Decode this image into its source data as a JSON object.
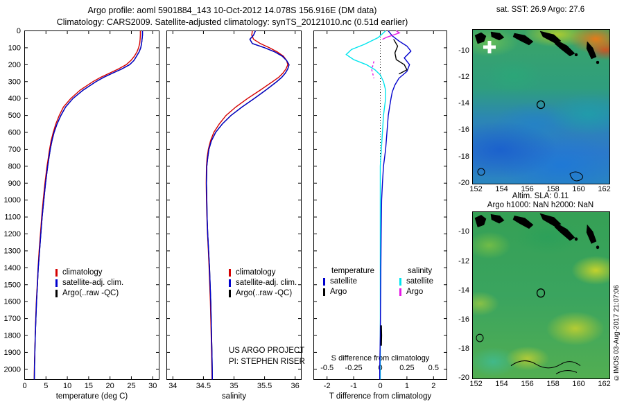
{
  "header": {
    "title_line1": "Argo profile: aoml 5901884_143 10-Oct-2012 14.078S 156.916E (DM data)",
    "title_line2": "Climatology: CARS2009. Satellite-adjusted climatology: synTS_20121010.nc (0.51d earlier)"
  },
  "colors": {
    "climatology": "#d40000",
    "satellite_adjusted": "#0000cd",
    "argo": "#000000",
    "salinity_satellite": "#00e5ee",
    "salinity_argo": "#e517e5"
  },
  "panels": {
    "temperature": {
      "xlabel": "temperature (deg C)",
      "legend_items": [
        {
          "label": "climatology",
          "color": "#d40000"
        },
        {
          "label": "satellite-adj. clim.",
          "color": "#0000cd"
        },
        {
          "label": "Argo(..raw -QC)",
          "color": "#000000"
        }
      ]
    },
    "salinity": {
      "xlabel": "salinity",
      "legend_items": [
        {
          "label": "climatology",
          "color": "#d40000"
        },
        {
          "label": "satellite-adj. clim.",
          "color": "#0000cd"
        },
        {
          "label": "Argo(..raw -QC)",
          "color": "#000000"
        }
      ],
      "note_line1": "US ARGO PROJECT",
      "note_line2": "PI: STEPHEN RISER"
    },
    "difference": {
      "xlabel": "T difference from climatology",
      "legend_columns": [
        {
          "header": "temperature",
          "items": [
            {
              "label": "satellite",
              "color": "#0000cd"
            },
            {
              "label": "Argo",
              "color": "#000000"
            }
          ]
        },
        {
          "header": "salinity",
          "items": [
            {
              "label": "satellite",
              "color": "#00e5ee"
            },
            {
              "label": "Argo",
              "color": "#e517e5"
            }
          ]
        }
      ]
    }
  },
  "maps": {
    "sst_title": "sat. SST: 26.9 Argo: 27.6",
    "middle_line1": "Altim. SLA: 0.11",
    "middle_line2": "Argo h1000: NaN h2000: NaN",
    "credit": "©IMOS 03-Aug-2017 21:07:06",
    "lon_ticks": [
      "152",
      "154",
      "156",
      "158",
      "160",
      "162"
    ],
    "lat_ticks": [
      "-10",
      "-12",
      "-14",
      "-16",
      "-18",
      "-20"
    ],
    "float_lon": 157.0,
    "float_lat": -14.1
  },
  "chart_data": [
    {
      "id": "temperature",
      "type": "line",
      "xlabel": "temperature (deg C)",
      "xlim": [
        0,
        31.5
      ],
      "ylim": [
        0,
        2060
      ],
      "xtick_values": [
        0,
        5,
        10,
        15,
        20,
        25,
        30
      ],
      "xtick_labels": [
        "0",
        "5",
        "10",
        "15",
        "20",
        "25",
        "30"
      ],
      "ytick_values": [
        0,
        100,
        200,
        300,
        400,
        500,
        600,
        700,
        800,
        900,
        1000,
        1100,
        1200,
        1300,
        1400,
        1500,
        1600,
        1700,
        1800,
        1900,
        2000
      ],
      "depths": [
        0,
        25,
        50,
        75,
        100,
        125,
        150,
        175,
        200,
        225,
        250,
        275,
        300,
        350,
        400,
        450,
        500,
        550,
        600,
        650,
        700,
        750,
        800,
        900,
        1000,
        1100,
        1200,
        1300,
        1400,
        1500,
        1600,
        1700,
        1800,
        1900,
        2000,
        2060
      ],
      "series": [
        {
          "name": "climatology",
          "color": "#d40000",
          "values": [
            27.1,
            27.1,
            27.05,
            26.95,
            26.7,
            26.3,
            25.7,
            24.9,
            23.8,
            22.0,
            19.9,
            17.8,
            16.0,
            13.0,
            10.8,
            9.1,
            8.1,
            7.3,
            6.7,
            6.2,
            5.85,
            5.55,
            5.25,
            4.75,
            4.35,
            4.0,
            3.7,
            3.4,
            3.15,
            2.95,
            2.75,
            2.6,
            2.48,
            2.37,
            2.28,
            2.25
          ]
        },
        {
          "name": "Argo raw -QC",
          "color": "#000000",
          "values": [
            27.6,
            27.6,
            27.5,
            27.4,
            27.2,
            26.8,
            26.2,
            25.6,
            24.6,
            22.8,
            20.6,
            18.5,
            16.7,
            13.7,
            11.3,
            9.6,
            8.5,
            7.6,
            6.9,
            6.4,
            6.0,
            5.7,
            5.4,
            4.9,
            4.5,
            4.1,
            3.8,
            3.5,
            3.2,
            3.0,
            2.8,
            2.65,
            2.5,
            2.4,
            2.3,
            2.28
          ]
        },
        {
          "name": "satellite-adj. clim.",
          "color": "#0000cd",
          "values": [
            27.6,
            27.6,
            27.5,
            27.4,
            27.2,
            26.8,
            26.2,
            25.6,
            24.6,
            22.8,
            20.6,
            18.5,
            16.7,
            13.7,
            11.3,
            9.6,
            8.5,
            7.6,
            6.9,
            6.4,
            6.0,
            5.7,
            5.4,
            4.9,
            4.5,
            4.1,
            3.8,
            3.5,
            3.2,
            3.0,
            2.8,
            2.65,
            2.5,
            2.4,
            2.3,
            2.28
          ]
        }
      ]
    },
    {
      "id": "salinity",
      "type": "line",
      "xlabel": "salinity",
      "xlim": [
        33.9,
        36.1
      ],
      "ylim": [
        0,
        2060
      ],
      "xtick_values": [
        34,
        34.5,
        35,
        35.5,
        36
      ],
      "xtick_labels": [
        "34",
        "34.5",
        "35",
        "35.5",
        "36"
      ],
      "ytick_values": [
        0,
        100,
        200,
        300,
        400,
        500,
        600,
        700,
        800,
        900,
        1000,
        1100,
        1200,
        1300,
        1400,
        1500,
        1600,
        1700,
        1800,
        1900,
        2000
      ],
      "depths": [
        0,
        25,
        50,
        75,
        100,
        125,
        150,
        175,
        200,
        225,
        250,
        275,
        300,
        350,
        400,
        450,
        500,
        550,
        600,
        650,
        700,
        750,
        800,
        900,
        1000,
        1100,
        1200,
        1300,
        1400,
        1500,
        1600,
        1700,
        1800,
        1900,
        2000,
        2060
      ],
      "series": [
        {
          "name": "climatology",
          "color": "#d40000",
          "values": [
            35.3,
            35.29,
            35.32,
            35.43,
            35.58,
            35.71,
            35.81,
            35.86,
            35.88,
            35.85,
            35.8,
            35.73,
            35.63,
            35.43,
            35.22,
            35.03,
            34.87,
            34.76,
            34.67,
            34.615,
            34.58,
            34.56,
            34.55,
            34.545,
            34.55,
            34.557,
            34.567,
            34.58,
            34.593,
            34.603,
            34.613,
            34.62,
            34.627,
            34.633,
            34.638,
            34.64
          ]
        },
        {
          "name": "Argo raw -QC",
          "color": "#000000",
          "values": [
            35.35,
            35.32,
            35.26,
            35.3,
            35.5,
            35.67,
            35.79,
            35.86,
            35.9,
            35.88,
            35.84,
            35.78,
            35.7,
            35.52,
            35.33,
            35.13,
            34.95,
            34.81,
            34.7,
            34.63,
            34.59,
            34.57,
            34.555,
            34.55,
            34.555,
            34.56,
            34.57,
            34.585,
            34.6,
            34.61,
            34.62,
            34.627,
            34.633,
            34.639,
            34.644,
            34.646
          ]
        },
        {
          "name": "satellite-adj. clim.",
          "color": "#0000cd",
          "values": [
            35.35,
            35.32,
            35.26,
            35.3,
            35.5,
            35.67,
            35.79,
            35.86,
            35.9,
            35.88,
            35.84,
            35.78,
            35.7,
            35.52,
            35.33,
            35.13,
            34.95,
            34.81,
            34.7,
            34.63,
            34.59,
            34.57,
            34.555,
            34.55,
            34.555,
            34.56,
            34.57,
            34.585,
            34.6,
            34.61,
            34.62,
            34.627,
            34.633,
            34.639,
            34.644,
            34.646
          ]
        }
      ]
    },
    {
      "id": "difference",
      "type": "line",
      "xlabel": "T difference from climatology",
      "xlabel_inner": "S difference from climatology",
      "zero_line": true,
      "xlim": [
        -2.5,
        2.5
      ],
      "ylim": [
        0,
        2060
      ],
      "xtick_values": [
        -2,
        -1,
        0,
        1,
        2
      ],
      "xtick_labels": [
        "-2",
        "-1",
        "0",
        "1",
        "2"
      ],
      "inner_tick_labels": [
        "-0.5",
        "-0.25",
        "0",
        "0.25",
        "0.5"
      ],
      "ytick_values": [
        0,
        100,
        200,
        300,
        400,
        500,
        600,
        700,
        800,
        900,
        1000,
        1100,
        1200,
        1300,
        1400,
        1500,
        1600,
        1700,
        1800,
        1900,
        2000
      ],
      "series": [
        {
          "name": "satellite S diff",
          "color": "#00e5ee",
          "scale": 4,
          "depths": [
            0,
            40,
            80,
            110,
            140,
            170,
            200,
            230,
            260,
            300,
            350,
            400,
            500,
            600,
            700,
            800,
            1000,
            1200,
            1500,
            1800,
            2060
          ],
          "values": [
            0.05,
            -0.02,
            -0.15,
            -0.27,
            -0.32,
            -0.25,
            -0.13,
            -0.05,
            0.0,
            0.03,
            0.05,
            0.05,
            0.03,
            0.02,
            0.01,
            0.0,
            0.0,
            0.0,
            0.0,
            0.0,
            0.0
          ]
        },
        {
          "name": "satellite T diff",
          "color": "#0000cd",
          "depths": [
            0,
            30,
            60,
            90,
            120,
            160,
            200,
            240,
            280,
            320,
            360,
            400,
            450,
            500,
            600,
            700,
            800,
            900,
            1000,
            1200,
            1400,
            1600,
            1800,
            2000,
            2060
          ],
          "values": [
            0.3,
            0.45,
            0.7,
            1.0,
            1.15,
            0.9,
            1.1,
            1.0,
            0.7,
            0.55,
            0.45,
            0.4,
            0.35,
            0.3,
            0.25,
            0.2,
            0.12,
            0.08,
            0.05,
            0.03,
            0.02,
            0.01,
            0.0,
            -0.02,
            -0.02
          ]
        },
        {
          "name": "Argo S diff upper",
          "color": "#e517e5",
          "scale": 4,
          "depths": [
            0,
            12,
            25,
            38,
            50
          ],
          "values": [
            0.15,
            0.18,
            0.12,
            0.06,
            0.02
          ]
        },
        {
          "name": "Argo S diff mid",
          "color": "#e517e5",
          "scale": 4,
          "dash": "3,3",
          "depths": [
            180,
            230,
            280
          ],
          "values": [
            -0.06,
            -0.08,
            -0.06
          ]
        },
        {
          "name": "Argo T diff upper",
          "color": "#000000",
          "depths": [
            50,
            90,
            130,
            170,
            200,
            230,
            255
          ],
          "values": [
            0.5,
            0.65,
            0.55,
            0.6,
            0.9,
            1.0,
            0.7
          ]
        },
        {
          "name": "Argo T diff deep",
          "color": "#000000",
          "width": 2.2,
          "depths": [
            1740,
            1800,
            1860
          ],
          "values": [
            0.03,
            0.04,
            0.03
          ]
        }
      ]
    }
  ]
}
